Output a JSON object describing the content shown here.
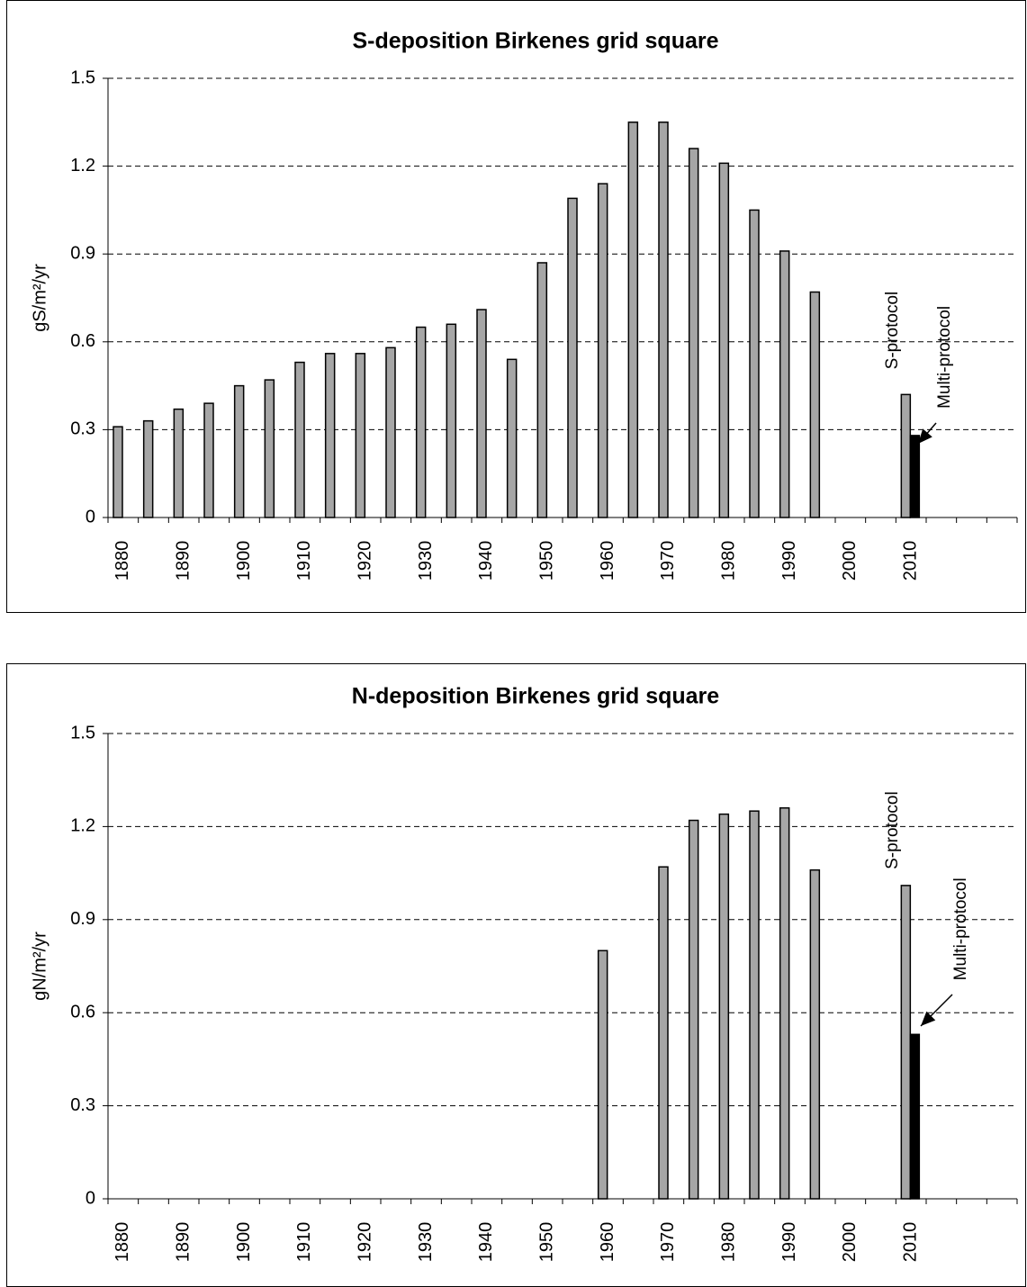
{
  "chart_data": [
    {
      "type": "bar",
      "title": "S-deposition Birkenes grid square",
      "ylabel": "gS/m²/yr",
      "categories": [
        "1880",
        null,
        "1890",
        null,
        "1900",
        null,
        "1910",
        null,
        "1920",
        null,
        "1930",
        null,
        "1940",
        null,
        "1950",
        null,
        "1960",
        null,
        "1970",
        null,
        "1980",
        null,
        "1990",
        null,
        "2000",
        null,
        "2010",
        null,
        null,
        null
      ],
      "series": [
        {
          "color": "#a6a6a6",
          "values": [
            0.31,
            0.33,
            0.37,
            0.39,
            0.45,
            0.47,
            0.53,
            0.56,
            0.56,
            0.58,
            0.65,
            0.66,
            0.71,
            0.54,
            0.87,
            1.09,
            1.14,
            1.35,
            1.35,
            1.26,
            1.21,
            1.05,
            0.91,
            0.77,
            null,
            null,
            0.42,
            null,
            null,
            null
          ]
        },
        {
          "color": "#000000",
          "values": [
            null,
            null,
            null,
            null,
            null,
            null,
            null,
            null,
            null,
            null,
            null,
            null,
            null,
            null,
            null,
            null,
            null,
            null,
            null,
            null,
            null,
            null,
            null,
            null,
            null,
            null,
            0.28,
            null,
            null,
            null
          ]
        }
      ],
      "annotations": [
        "S-protocol",
        "Multi-protocol"
      ],
      "ylim": [
        0,
        1.5
      ],
      "yticks": [
        0,
        0.3,
        0.6,
        0.9,
        1.2,
        1.5
      ],
      "grid": true
    },
    {
      "type": "bar",
      "title": "N-deposition Birkenes grid square",
      "ylabel": "gN/m²/yr",
      "categories": [
        "1880",
        null,
        "1890",
        null,
        "1900",
        null,
        "1910",
        null,
        "1920",
        null,
        "1930",
        null,
        "1940",
        null,
        "1950",
        null,
        "1960",
        null,
        "1970",
        null,
        "1980",
        null,
        "1990",
        null,
        "2000",
        null,
        "2010",
        null,
        null,
        null
      ],
      "series": [
        {
          "color": "#a6a6a6",
          "values": [
            null,
            null,
            null,
            null,
            null,
            null,
            null,
            null,
            null,
            null,
            null,
            null,
            null,
            null,
            null,
            null,
            0.8,
            null,
            1.07,
            1.22,
            1.24,
            1.25,
            1.26,
            1.06,
            null,
            null,
            1.01,
            null,
            null,
            null
          ]
        },
        {
          "color": "#000000",
          "values": [
            null,
            null,
            null,
            null,
            null,
            null,
            null,
            null,
            null,
            null,
            null,
            null,
            null,
            null,
            null,
            null,
            null,
            null,
            null,
            null,
            null,
            null,
            null,
            null,
            null,
            null,
            0.53,
            null,
            null,
            null
          ]
        }
      ],
      "annotations": [
        "S-protocol",
        "Multi-protocol"
      ],
      "ylim": [
        0,
        1.5
      ],
      "yticks": [
        0,
        0.3,
        0.6,
        0.9,
        1.2,
        1.5
      ],
      "grid": true
    }
  ]
}
